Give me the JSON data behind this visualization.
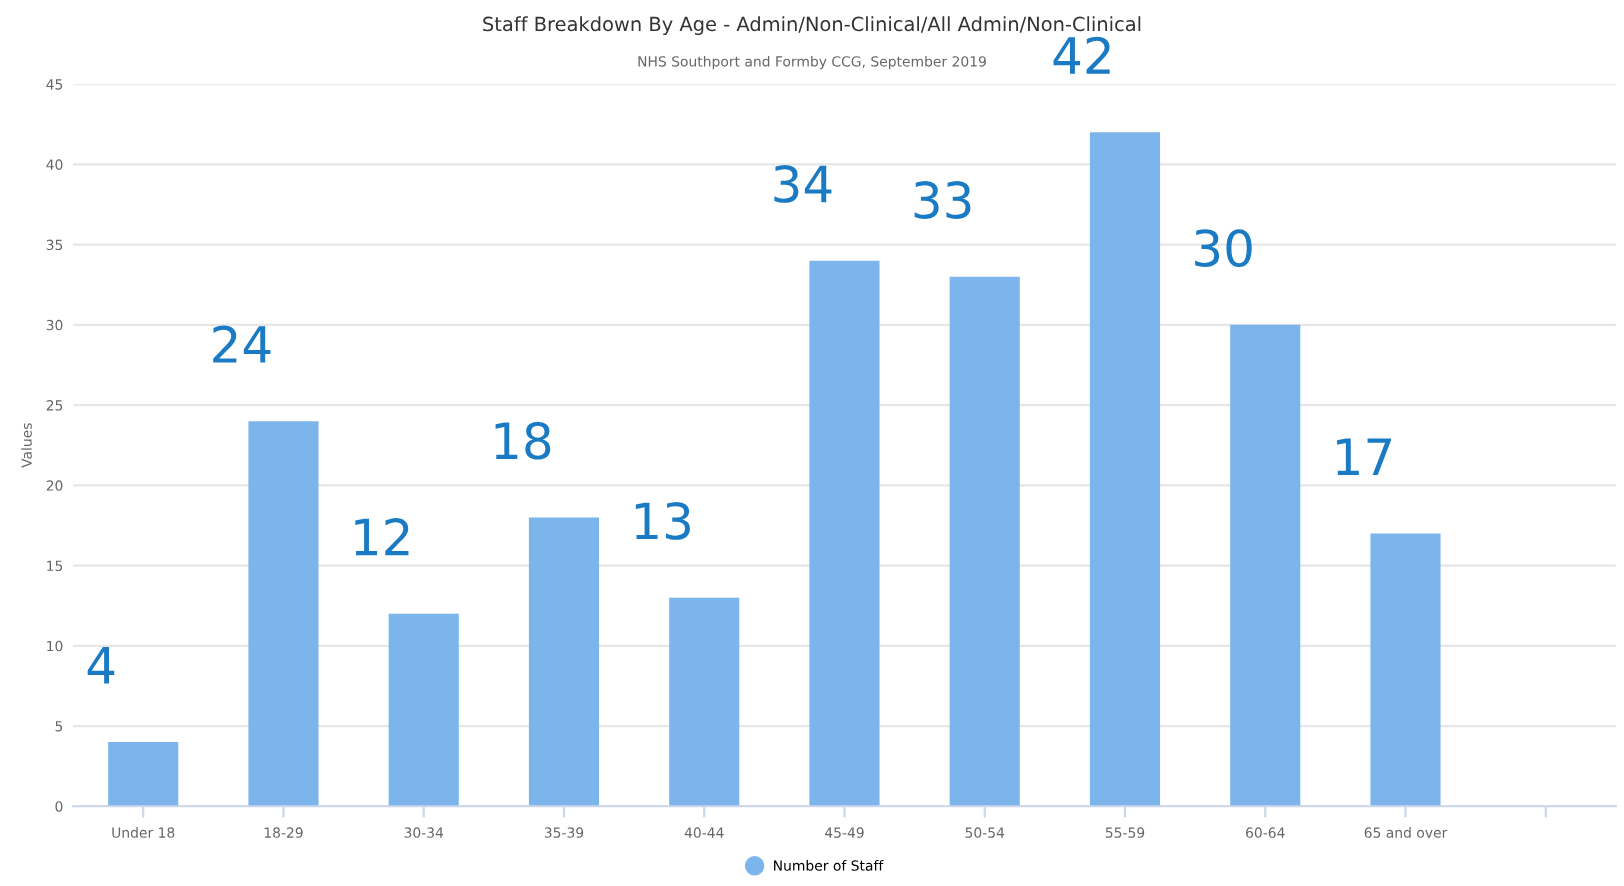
{
  "chart_data": {
    "type": "bar",
    "title": "Staff Breakdown By Age - Admin/Non-Clinical/All Admin/Non-Clinical",
    "subtitle": "NHS Southport and Formby CCG, September 2019",
    "ylabel": "Values",
    "categories": [
      "Under 18",
      "18-29",
      "30-34",
      "35-39",
      "40-44",
      "45-49",
      "50-54",
      "55-59",
      "60-64",
      "65 and over",
      null
    ],
    "series": [
      {
        "name": "Number of Staff",
        "color": "#7cb5ec",
        "values": [
          4,
          24,
          12,
          18,
          13,
          34,
          33,
          42,
          30,
          17,
          null
        ]
      }
    ],
    "ylim": [
      0,
      45
    ],
    "yticks": [
      0,
      5,
      10,
      15,
      20,
      25,
      30,
      35,
      40,
      45
    ],
    "grid": "y",
    "legend": "bottom",
    "marker": "circle",
    "data_labels": true
  }
}
